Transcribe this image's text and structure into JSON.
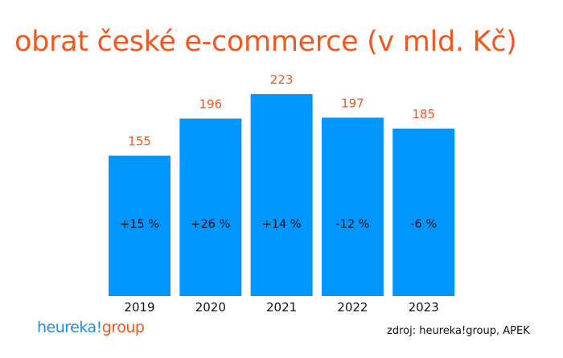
{
  "chart_data": {
    "type": "bar",
    "title": "obrat české e-commerce (v mld. Kč)",
    "categories": [
      "2019",
      "2020",
      "2021",
      "2022",
      "2023"
    ],
    "values": [
      155,
      196,
      223,
      197,
      185
    ],
    "value_labels": [
      "155",
      "196",
      "223",
      "197",
      "185"
    ],
    "change_labels": [
      "+15 %",
      "+26 %",
      "+14 %",
      "-12 %",
      "-6 %"
    ],
    "xlabel": "",
    "ylabel": "",
    "ylim": [
      0,
      223
    ],
    "grid": false,
    "colors": {
      "bar": "#0096ff",
      "value_label": "#f3561f",
      "title": "#f3561f"
    }
  },
  "logo": {
    "part1": "heureka!",
    "part2": "group"
  },
  "source": "zdroj: heureka!group, APEK"
}
